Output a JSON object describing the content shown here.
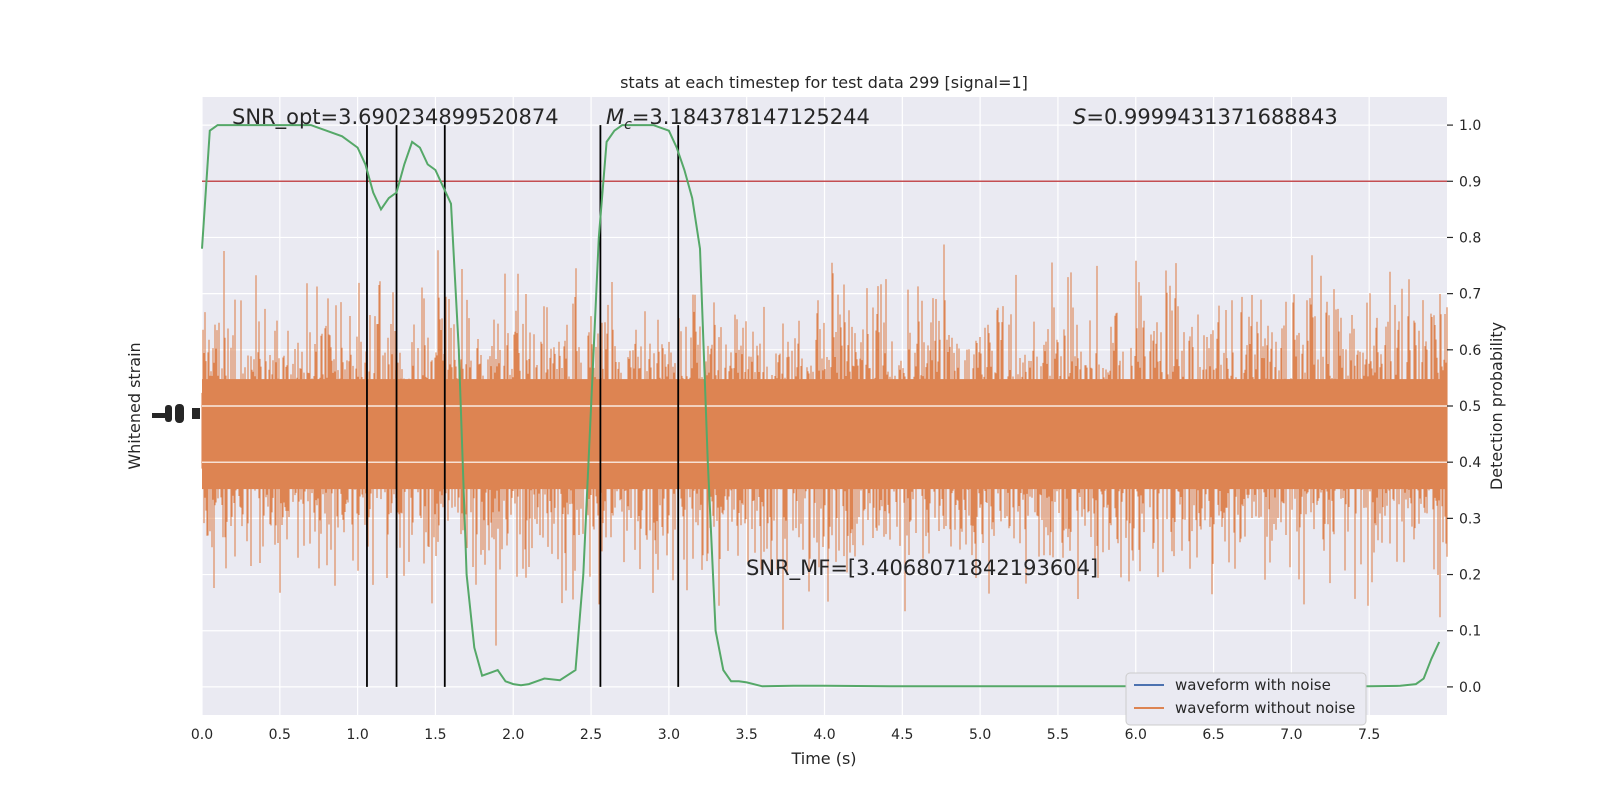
{
  "chart_data": {
    "type": "line",
    "title": "stats at each timestep for test data 299 [signal=1]",
    "xlabel": "Time (s)",
    "ylabel_left": "Whitened strain",
    "ylabel_right": "Detection probability",
    "xlim": [
      0.0,
      8.0
    ],
    "ylim_right": [
      -0.05,
      1.05
    ],
    "x_ticks": [
      "0.0",
      "0.5",
      "1.0",
      "1.5",
      "2.0",
      "2.5",
      "3.0",
      "3.5",
      "4.0",
      "4.5",
      "5.0",
      "5.5",
      "6.0",
      "6.5",
      "7.0",
      "7.5"
    ],
    "y_ticks_right": [
      "0.0",
      "0.1",
      "0.2",
      "0.3",
      "0.4",
      "0.5",
      "0.6",
      "0.7",
      "0.8",
      "0.9",
      "1.0"
    ],
    "grid": true,
    "legend_position": "lower-right",
    "legend": [
      "waveform with noise",
      "waveform without noise"
    ],
    "annotations": {
      "snr_opt": "SNR_opt=3.690234899520874",
      "mc_symbol": "M",
      "mc_sub": "c",
      "mc_value": "=3.184378147125244",
      "s_symbol": "S",
      "s_value": "=0.9999431371688843",
      "snr_mf": "SNR_MF=[3.4068071842193604]"
    },
    "threshold": 0.9,
    "vertical_markers": [
      1.06,
      1.25,
      1.56,
      2.56,
      3.06
    ],
    "series": [
      {
        "name": "waveform with noise",
        "color": "#4c72b0",
        "note_values": "whitened strain noise filling the plot area",
        "values": []
      },
      {
        "name": "waveform without noise",
        "color": "#dd8452",
        "values": []
      },
      {
        "color": "#55a868",
        "x": [
          0.0,
          0.05,
          0.1,
          0.2,
          0.3,
          0.4,
          0.5,
          0.6,
          0.7,
          0.8,
          0.9,
          1.0,
          1.05,
          1.1,
          1.15,
          1.2,
          1.25,
          1.3,
          1.35,
          1.4,
          1.45,
          1.5,
          1.55,
          1.6,
          1.65,
          1.7,
          1.75,
          1.8,
          1.85,
          1.9,
          1.95,
          2.0,
          2.05,
          2.1,
          2.15,
          2.2,
          2.3,
          2.4,
          2.45,
          2.5,
          2.55,
          2.6,
          2.65,
          2.7,
          2.8,
          2.9,
          3.0,
          3.05,
          3.1,
          3.15,
          3.2,
          3.25,
          3.3,
          3.35,
          3.4,
          3.45,
          3.5,
          3.6,
          3.8,
          4.0,
          4.5,
          5.0,
          5.5,
          6.0,
          6.5,
          7.0,
          7.5,
          7.7,
          7.8,
          7.85,
          7.9,
          7.95
        ],
        "values": [
          0.78,
          0.99,
          1.0,
          1.0,
          1.0,
          1.0,
          1.0,
          1.0,
          1.0,
          0.99,
          0.98,
          0.96,
          0.93,
          0.88,
          0.85,
          0.87,
          0.88,
          0.93,
          0.97,
          0.96,
          0.93,
          0.92,
          0.89,
          0.86,
          0.6,
          0.2,
          0.07,
          0.02,
          0.025,
          0.03,
          0.01,
          0.005,
          0.003,
          0.005,
          0.01,
          0.015,
          0.012,
          0.03,
          0.2,
          0.5,
          0.8,
          0.97,
          0.99,
          1.0,
          1.0,
          1.0,
          0.99,
          0.96,
          0.92,
          0.87,
          0.78,
          0.4,
          0.1,
          0.03,
          0.01,
          0.01,
          0.008,
          0.001,
          0.002,
          0.002,
          0.001,
          0.001,
          0.001,
          0.001,
          0.001,
          0.001,
          0.001,
          0.002,
          0.005,
          0.015,
          0.05,
          0.08
        ]
      }
    ]
  }
}
